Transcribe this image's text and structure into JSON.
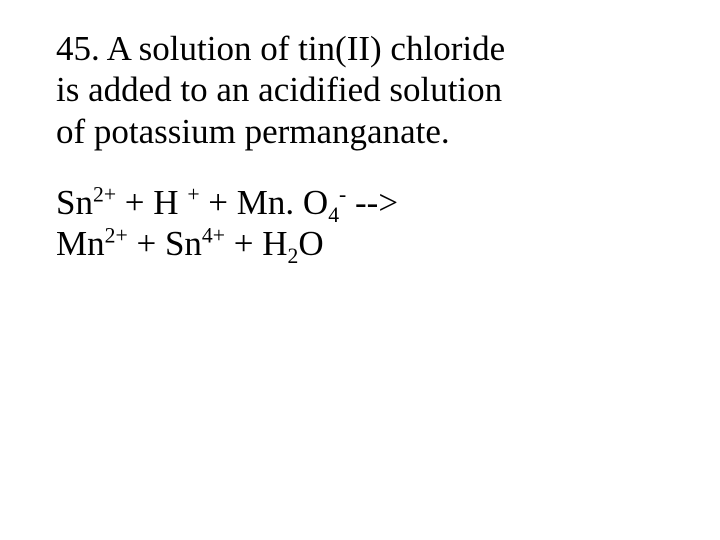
{
  "text_color": "#000000",
  "background_color": "#ffffff",
  "font_family": "Times New Roman",
  "question": {
    "number": "45.",
    "line1": "45. A solution of tin(II) chloride",
    "line2": "is added to an acidified solution",
    "line3": "of potassium permanganate."
  },
  "equation": {
    "lhs": {
      "t1": "Sn",
      "sup1": "2+",
      "t2": " + H ",
      "sup2": "+",
      "t3": " + Mn. O",
      "sub1": "4",
      "sup3": "-",
      "arrow": " --> "
    },
    "rhs": {
      "t1": "Mn",
      "sup1": "2+",
      "t2": " + Sn",
      "sup2": "4+",
      "t3": " + H",
      "sub1": "2",
      "t4": "O"
    }
  }
}
